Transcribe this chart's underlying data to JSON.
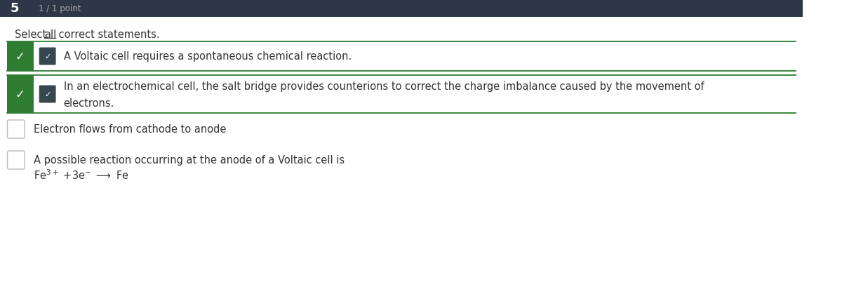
{
  "question_number": "5",
  "score": "1 / 1 point",
  "bg_color": "#ffffff",
  "header_bg": "#2d3748",
  "header_text_color": "#ffffff",
  "score_text_color": "#aaaaaa",
  "correct_green": "#2e7d32",
  "checkbox_dark": "#37474f",
  "border_color": "#2e7d32",
  "unchecked_border": "#bbbbbb",
  "text_color": "#333333",
  "option1_text": "A Voltaic cell requires a spontaneous chemical reaction.",
  "option2_line1": "In an electrochemical cell, the salt bridge provides counterions to correct the charge imbalance caused by the movement of",
  "option2_line2": "electrons.",
  "option3_text": "Electron flows from cathode to anode",
  "option4_line1": "A possible reaction occurring at the anode of a Voltaic cell is",
  "option4_line2": "Fe$^{3+}$ +3e$^{-}$ $\\longrightarrow$ Fe"
}
